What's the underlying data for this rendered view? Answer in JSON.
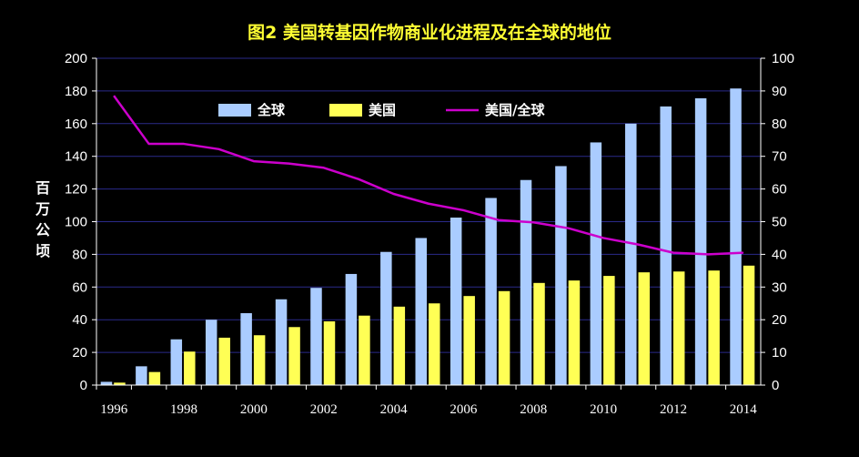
{
  "chart_data": {
    "type": "bar",
    "title": "图2 美国转基因作物商业化进程及在全球的地位",
    "ylabel": "百万公顷",
    "ylim": [
      0,
      200
    ],
    "y2lim": [
      0,
      100
    ],
    "yticks": [
      "0",
      "20",
      "40",
      "60",
      "80",
      "100",
      "120",
      "140",
      "160",
      "180",
      "200"
    ],
    "y2ticks": [
      "0",
      "10",
      "20",
      "30",
      "40",
      "50",
      "60",
      "70",
      "80",
      "90",
      "100"
    ],
    "x": [
      1996,
      1997,
      1998,
      1999,
      2000,
      2001,
      2002,
      2003,
      2004,
      2005,
      2006,
      2007,
      2008,
      2009,
      2010,
      2011,
      2012,
      2013,
      2014
    ],
    "xtick_labels": [
      "1996",
      "1998",
      "2000",
      "2002",
      "2004",
      "2006",
      "2008",
      "2010",
      "2012",
      "2014"
    ],
    "grid": true,
    "legend_position": "top-left",
    "series": [
      {
        "name": "全球",
        "kind": "bar",
        "axis": "left",
        "color": "#aaccff",
        "values": [
          2.0,
          11.5,
          28.0,
          40.0,
          44.0,
          52.5,
          59.5,
          68.0,
          81.5,
          90.0,
          102.5,
          114.5,
          125.5,
          134.0,
          148.5,
          160.0,
          170.5,
          175.5,
          181.5
        ]
      },
      {
        "name": "美国",
        "kind": "bar",
        "axis": "left",
        "color": "#ffff55",
        "values": [
          1.5,
          8.0,
          20.5,
          29.0,
          30.5,
          35.5,
          39.0,
          42.5,
          48.0,
          50.0,
          54.5,
          57.5,
          62.5,
          64.0,
          66.8,
          69.0,
          69.5,
          70.1,
          73.1
        ]
      },
      {
        "name": "美国/全球",
        "kind": "line",
        "axis": "right",
        "color": "#cc00cc",
        "values": [
          88.5,
          73.8,
          73.8,
          72.2,
          68.5,
          67.8,
          66.5,
          63.0,
          58.5,
          55.5,
          53.5,
          50.5,
          49.8,
          48.0,
          45.0,
          43.0,
          40.5,
          40.0,
          40.5
        ]
      }
    ]
  }
}
